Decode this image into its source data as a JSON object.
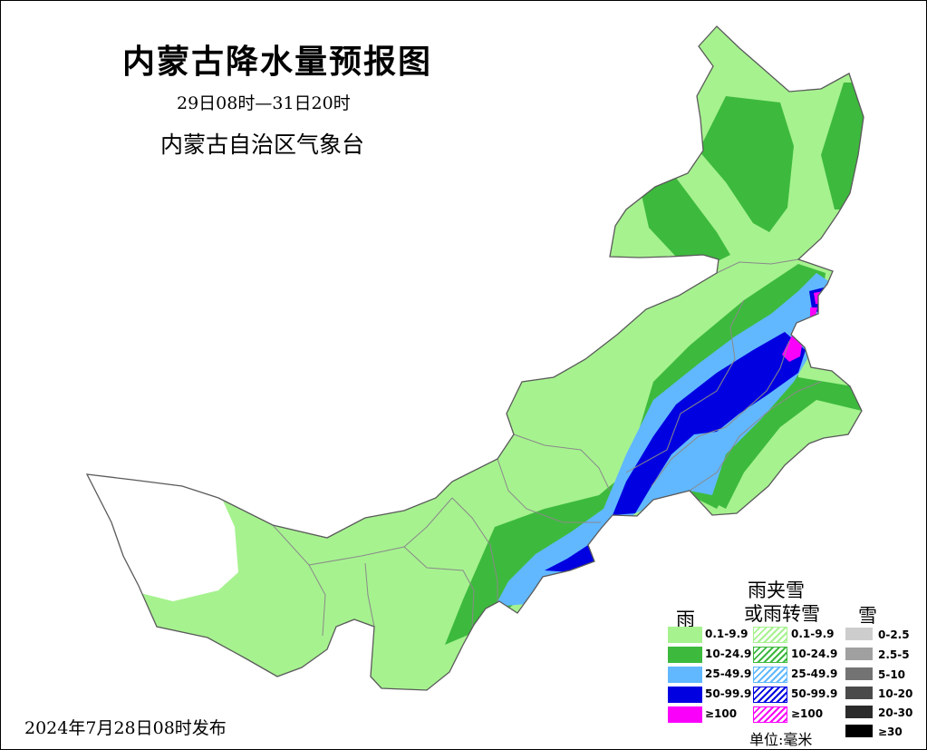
{
  "map": {
    "title": "内蒙古降水量预报图",
    "period": "29日08时—31日20时",
    "agency": "内蒙古自治区气象台",
    "issued": "2024年7月28日08时发布"
  },
  "legend": {
    "rain_heading": "雨",
    "mixed_heading_line1": "雨夹雪",
    "mixed_heading_line2": "或雨转雪",
    "snow_heading": "雪",
    "rain": [
      {
        "label": "0.1-9.9",
        "color": "#a6f28f"
      },
      {
        "label": "10-24.9",
        "color": "#3dba3d"
      },
      {
        "label": "25-49.9",
        "color": "#61b8ff"
      },
      {
        "label": "50-99.9",
        "color": "#0000e1"
      },
      {
        "label": "≥100",
        "color": "#fa00fa"
      }
    ],
    "mixed": [
      {
        "label": "0.1-9.9",
        "color": "#a6f28f"
      },
      {
        "label": "10-24.9",
        "color": "#3dba3d"
      },
      {
        "label": "25-49.9",
        "color": "#61b8ff"
      },
      {
        "label": "50-99.9",
        "color": "#0000e1"
      },
      {
        "label": "≥100",
        "color": "#fa00fa"
      }
    ],
    "snow": [
      {
        "label": "0-2.5",
        "color": "#cdcdcd"
      },
      {
        "label": "2.5-5",
        "color": "#a0a0a0"
      },
      {
        "label": "5-10",
        "color": "#737373"
      },
      {
        "label": "10-20",
        "color": "#4a4a4a"
      },
      {
        "label": "20-30",
        "color": "#2b2b2b"
      },
      {
        "label": "≥30",
        "color": "#000000"
      }
    ],
    "unit": "单位:毫米"
  }
}
